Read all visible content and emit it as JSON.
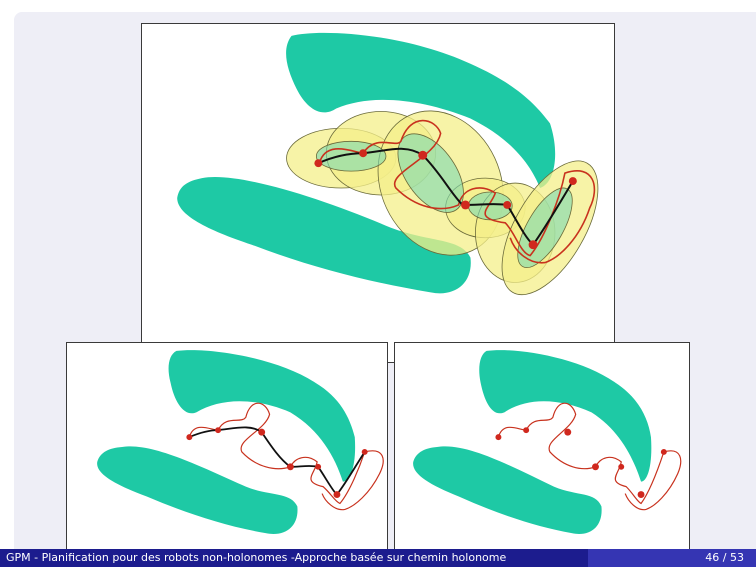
{
  "slide": {
    "footer_title": "GPM - Planification pour des robots non-holonomes -Approche basée sur chemin holonome",
    "page_number": "46 / 53"
  },
  "colors": {
    "obstacle": "#1ec9a5",
    "path_holonomic": "#111111",
    "path_nonholonomic": "#c8321e",
    "waypoint": "#d0281e",
    "ellipse_fill": "#f4ef8a",
    "ellipse_inner": "#7ad9b0",
    "footer_left": "#1c1c8e",
    "footer_right": "#3535b3"
  },
  "figures": [
    {
      "id": "top",
      "shows": [
        "obstacles",
        "reachability-ellipses",
        "holonomic-path",
        "nonholonomic-path",
        "waypoints"
      ]
    },
    {
      "id": "bottom-left",
      "shows": [
        "obstacles",
        "holonomic-path",
        "nonholonomic-path",
        "waypoints"
      ]
    },
    {
      "id": "bottom-right",
      "shows": [
        "obstacles",
        "nonholonomic-path",
        "waypoints"
      ]
    }
  ]
}
